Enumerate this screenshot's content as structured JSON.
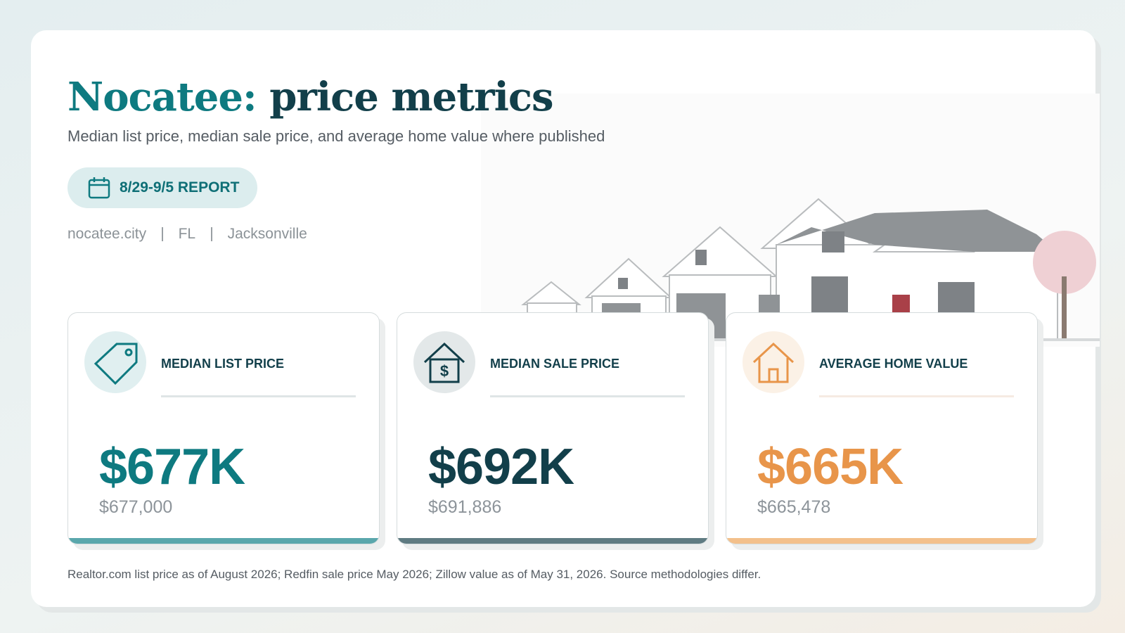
{
  "header": {
    "title_place": "Nocatee:",
    "title_rest": "price metrics",
    "subtitle": "Median list price, median sale price, and average home value where published",
    "badge": "8/29-9/5 REPORT",
    "meta": [
      "nocatee.city",
      "FL",
      "Jacksonville"
    ]
  },
  "cards": [
    {
      "label": "MEDIAN LIST PRICE",
      "value": "$677K",
      "exact": "$677,000"
    },
    {
      "label": "MEDIAN SALE PRICE",
      "value": "$692K",
      "exact": "$691,886"
    },
    {
      "label": "AVERAGE HOME VALUE",
      "value": "$665K",
      "exact": "$665,478"
    }
  ],
  "footnote": "Realtor.com list price as of August 2026; Redfin sale price May 2026; Zillow value as of May 31, 2026. Source methodologies differ."
}
